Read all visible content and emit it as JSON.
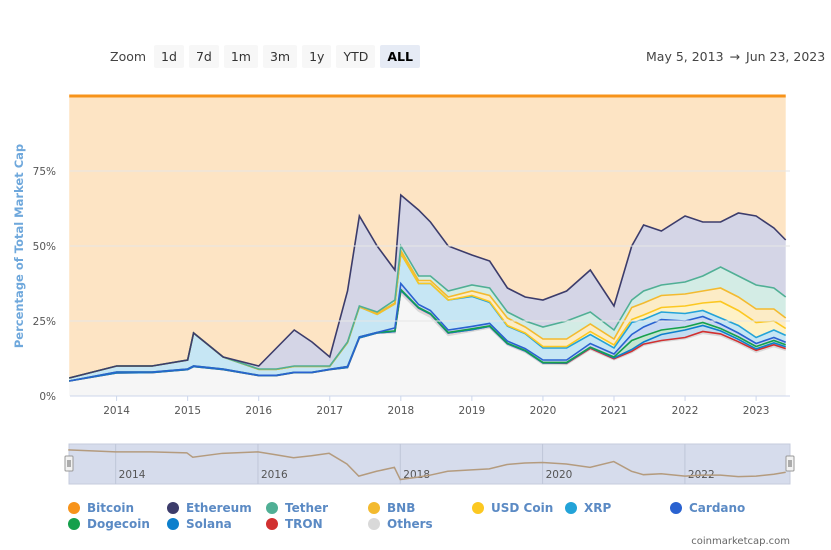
{
  "zoom": {
    "label": "Zoom",
    "buttons": [
      "1d",
      "7d",
      "1m",
      "3m",
      "1y",
      "YTD",
      "ALL"
    ],
    "selected": "ALL"
  },
  "range": {
    "from": "May 5, 2013",
    "arrow": "→",
    "to": "Jun 23, 2023"
  },
  "credit": "coinmarketcap.com",
  "chart_data": {
    "type": "area",
    "stacked": true,
    "ylabel": "Percentage of Total Market Cap",
    "ylim": [
      0,
      100
    ],
    "yticks": [
      "0%",
      "25%",
      "50%",
      "75%"
    ],
    "ytick_values": [
      0,
      25,
      50,
      75
    ],
    "xlim": [
      "2013-05-05",
      "2023-06-23"
    ],
    "xticks": [
      "2014",
      "2015",
      "2016",
      "2017",
      "2018",
      "2019",
      "2020",
      "2021",
      "2022",
      "2023"
    ],
    "navigator_ticks": [
      "2014",
      "2016",
      "2018",
      "2020",
      "2022"
    ],
    "grid": true,
    "legend_position": "bottom",
    "x": [
      "2013-05",
      "2014-01",
      "2014-07",
      "2015-01",
      "2015-02",
      "2015-07",
      "2016-01",
      "2016-04",
      "2016-07",
      "2016-10",
      "2017-01",
      "2017-04",
      "2017-06",
      "2017-09",
      "2017-12",
      "2018-01",
      "2018-04",
      "2018-06",
      "2018-09",
      "2019-01",
      "2019-04",
      "2019-07",
      "2019-10",
      "2020-01",
      "2020-05",
      "2020-09",
      "2021-01",
      "2021-04",
      "2021-06",
      "2021-09",
      "2022-01",
      "2022-04",
      "2022-07",
      "2022-10",
      "2023-01",
      "2023-04",
      "2023-06"
    ],
    "series": [
      {
        "name": "Bitcoin",
        "color": "#f7931a",
        "fill": "#fde4c4",
        "values": [
          94,
          90,
          90,
          88,
          79,
          87,
          90,
          84,
          78,
          82,
          87,
          65,
          40,
          50,
          58,
          33,
          38,
          42,
          50,
          53,
          55,
          64,
          67,
          68,
          65,
          58,
          70,
          50,
          43,
          45,
          40,
          42,
          42,
          39,
          40,
          44,
          48
        ]
      },
      {
        "name": "Ethereum",
        "color": "#3c3c6b",
        "fill": "#d4d5e6",
        "values": [
          0,
          0,
          0,
          0,
          0,
          0,
          1,
          7,
          12,
          8,
          3,
          17,
          30,
          22,
          10,
          17,
          22,
          18,
          15,
          10,
          9,
          8,
          8,
          9,
          10,
          14,
          8,
          18,
          22,
          18,
          22,
          18,
          15,
          21,
          23,
          20,
          19
        ]
      },
      {
        "name": "Tether",
        "color": "#50af95",
        "fill": "#d3ece5",
        "values": [
          0,
          0,
          0,
          0,
          0,
          0,
          0.1,
          0.1,
          0.1,
          0.1,
          0.1,
          0.2,
          0.3,
          0.5,
          1,
          1.5,
          1.5,
          1.5,
          2,
          2,
          2.5,
          2,
          2,
          4,
          6,
          4,
          3,
          2.5,
          4,
          3.5,
          4,
          5,
          7,
          7,
          8,
          7,
          7
        ]
      },
      {
        "name": "BNB",
        "color": "#f3ba2f",
        "fill": "#fcecc6",
        "values": [
          0,
          0,
          0,
          0,
          0,
          0,
          0,
          0,
          0,
          0,
          0,
          0,
          0,
          0.3,
          0.3,
          1,
          1,
          1,
          1,
          1.5,
          2,
          2.5,
          2,
          2.5,
          2.5,
          2.5,
          2,
          4,
          4,
          4,
          4,
          4,
          4.5,
          4.5,
          4.5,
          4,
          3.5
        ]
      },
      {
        "name": "USD Coin",
        "color": "#fcc821",
        "fill": "#fef2c6",
        "values": [
          0,
          0,
          0,
          0,
          0,
          0,
          0,
          0,
          0,
          0,
          0,
          0,
          0,
          0,
          0,
          0,
          0,
          0,
          0,
          0.3,
          0.3,
          0.2,
          0.2,
          0.5,
          0.5,
          1,
          1,
          1,
          1.5,
          1.5,
          2.5,
          2.5,
          5.5,
          5,
          5,
          3,
          2.3
        ]
      },
      {
        "name": "XRP",
        "color": "#23a3d8",
        "fill": "#c6e6f4",
        "values": [
          1,
          2,
          2,
          3,
          11,
          4,
          2,
          2,
          2,
          2,
          1,
          8,
          10,
          6,
          8,
          10,
          7,
          9,
          10,
          10,
          7,
          5,
          5,
          4,
          4,
          3,
          2,
          4,
          2.5,
          2.5,
          2.5,
          2,
          2,
          2.5,
          2,
          2.5,
          2.3
        ]
      },
      {
        "name": "Cardano",
        "color": "#2a62d0",
        "fill": "#c9d7f2",
        "values": [
          0,
          0,
          0,
          0,
          0,
          0,
          0,
          0,
          0,
          0,
          0,
          0,
          0,
          0,
          1,
          2,
          1,
          1,
          0.8,
          0.8,
          0.8,
          0.7,
          0.6,
          0.8,
          0.8,
          1.2,
          1,
          2,
          3,
          3.5,
          2,
          2,
          1.5,
          1.3,
          1,
          1,
          0.8
        ]
      },
      {
        "name": "Dogecoin",
        "color": "#16a04c",
        "fill": "#c4e6d1",
        "values": [
          0,
          0.3,
          0.2,
          0.2,
          0.2,
          0.2,
          0.1,
          0.1,
          0.1,
          0.1,
          0.1,
          0.3,
          0.3,
          0.2,
          0.2,
          0.3,
          0.2,
          0.2,
          0.2,
          0.3,
          0.2,
          0.2,
          0.2,
          0.2,
          0.2,
          0.1,
          0.3,
          3,
          2,
          1.5,
          1,
          1,
          0.8,
          0.8,
          0.8,
          0.8,
          0.7
        ]
      },
      {
        "name": "Solana",
        "color": "#0d7fcc",
        "fill": "#c2dcf1",
        "values": [
          0,
          0,
          0,
          0,
          0,
          0,
          0,
          0,
          0,
          0,
          0,
          0,
          0,
          0,
          0,
          0,
          0,
          0,
          0,
          0,
          0,
          0,
          0,
          0,
          0.1,
          0.3,
          0.3,
          0.6,
          0.7,
          2,
          2.5,
          2,
          1,
          0.8,
          0.5,
          0.6,
          0.6
        ]
      },
      {
        "name": "TRON",
        "color": "#d13030",
        "fill": "#f2cccc",
        "values": [
          0,
          0,
          0,
          0,
          0,
          0,
          0,
          0,
          0,
          0,
          0,
          0,
          0,
          0,
          0.5,
          1,
          1,
          1,
          0.8,
          0.5,
          0.5,
          0.4,
          0.4,
          0.4,
          0.4,
          0.4,
          0.3,
          0.4,
          0.4,
          0.4,
          0.4,
          0.6,
          0.6,
          0.5,
          0.6,
          0.6,
          0.6
        ]
      },
      {
        "name": "Others",
        "color": "#d9d9d9",
        "fill": "#f6f6f6",
        "values": [
          5,
          7.7,
          7.8,
          8.8,
          9.8,
          8.8,
          6.8,
          6.8,
          7.8,
          7.8,
          8.8,
          9.5,
          19.4,
          21,
          21,
          34.2,
          28.3,
          26.3,
          20.2,
          21.6,
          22.7,
          17,
          14.6,
          10.6,
          10.5,
          15.5,
          12.1,
          14.5,
          16.9,
          18.1,
          19.1,
          20.9,
          20.1,
          17.6,
          14.6,
          16.5,
          15.2
        ]
      }
    ]
  }
}
